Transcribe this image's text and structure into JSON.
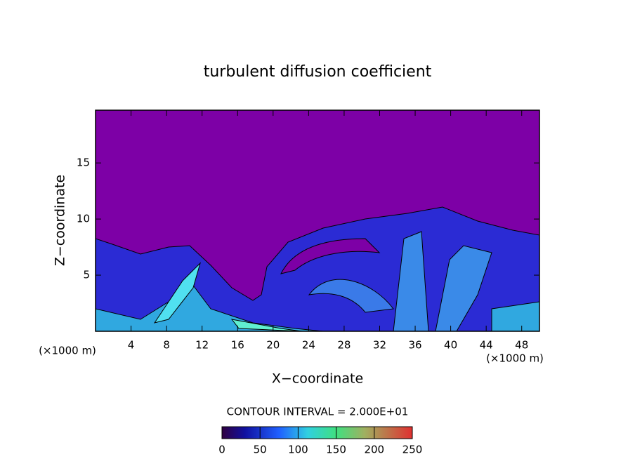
{
  "chart_data": {
    "type": "contour",
    "title": "turbulent diffusion coefficient",
    "x_label": "X−coordinate",
    "y_label": "Z−coordinate",
    "x_unit": "(×1000 m)",
    "y_unit": "(×1000 m)",
    "xlim": [
      0,
      50
    ],
    "ylim": [
      0,
      19.7
    ],
    "xticks": [
      4,
      8,
      12,
      16,
      20,
      24,
      28,
      32,
      36,
      40,
      44,
      48
    ],
    "yticks": [
      5,
      10,
      15
    ],
    "contour_note": "CONTOUR INTERVAL = 2.000E+01",
    "colorbar": {
      "lim": [
        0,
        250
      ],
      "ticks": [
        0,
        50,
        100,
        150,
        200,
        250
      ]
    }
  }
}
